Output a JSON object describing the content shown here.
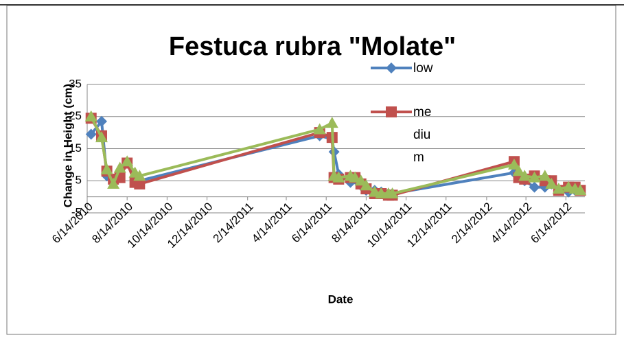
{
  "chart_data": {
    "type": "line",
    "title": "Festuca rubra \"Molate\"",
    "x_label": "Date",
    "y_label": "Change in Height (cm)",
    "x": [
      "6/20/2010",
      "7/6/2010",
      "7/14/2010",
      "7/24/2010",
      "8/3/2010",
      "8/14/2010",
      "8/26/2010",
      "9/2/2010",
      "6/4/2011",
      "6/23/2011",
      "6/26/2011",
      "7/3/2011",
      "7/21/2011",
      "7/28/2011",
      "8/6/2011",
      "8/14/2011",
      "8/27/2011",
      "9/6/2011",
      "9/17/2011",
      "9/23/2011",
      "3/27/2012",
      "4/3/2012",
      "4/12/2012",
      "4/27/2012",
      "5/13/2012",
      "5/23/2012",
      "6/3/2012",
      "6/18/2012",
      "6/28/2012",
      "7/6/2012"
    ],
    "series": [
      {
        "name": "low",
        "color": "#4f81bd",
        "marker": "diamond",
        "values": [
          19.5,
          23.5,
          6.5,
          5,
          7,
          10.5,
          5,
          5,
          19,
          18,
          14,
          7,
          4.5,
          5.5,
          3.5,
          2,
          2,
          1.5,
          1,
          1,
          7.5,
          6,
          5,
          3,
          3,
          4,
          2,
          1.5,
          2,
          2
        ]
      },
      {
        "name": "medium",
        "color": "#c0504d",
        "marker": "square",
        "values": [
          24.5,
          19,
          8,
          5.5,
          6,
          10.5,
          4.5,
          4,
          20,
          18.5,
          6,
          5.5,
          6,
          6,
          4,
          2.5,
          1,
          1,
          0.5,
          0.5,
          11,
          6,
          5.5,
          6.5,
          5,
          5,
          2,
          3,
          3,
          2
        ]
      },
      {
        "color": "#9bbb59",
        "marker": "triangle",
        "values": [
          25,
          18.5,
          8.5,
          4,
          9,
          11,
          7.5,
          6.5,
          21,
          23,
          6.5,
          6,
          6.5,
          6,
          5,
          3.5,
          1.5,
          1,
          1,
          1,
          10,
          8,
          6.5,
          6,
          6.5,
          4,
          2.5,
          3,
          2.5,
          2
        ]
      }
    ],
    "xlim": [
      "6/14/2010",
      "7/13/2012"
    ],
    "xticks": [
      "6/14/2010",
      "8/14/2010",
      "10/14/2010",
      "12/14/2010",
      "2/14/2011",
      "4/14/2011",
      "6/14/2011",
      "8/14/2011",
      "10/14/2011",
      "12/14/2011",
      "2/14/2012",
      "4/14/2012",
      "6/14/2012"
    ],
    "ylim": [
      -5,
      35
    ],
    "yticks": [
      -5,
      5,
      15,
      25,
      35
    ],
    "grid": true
  }
}
